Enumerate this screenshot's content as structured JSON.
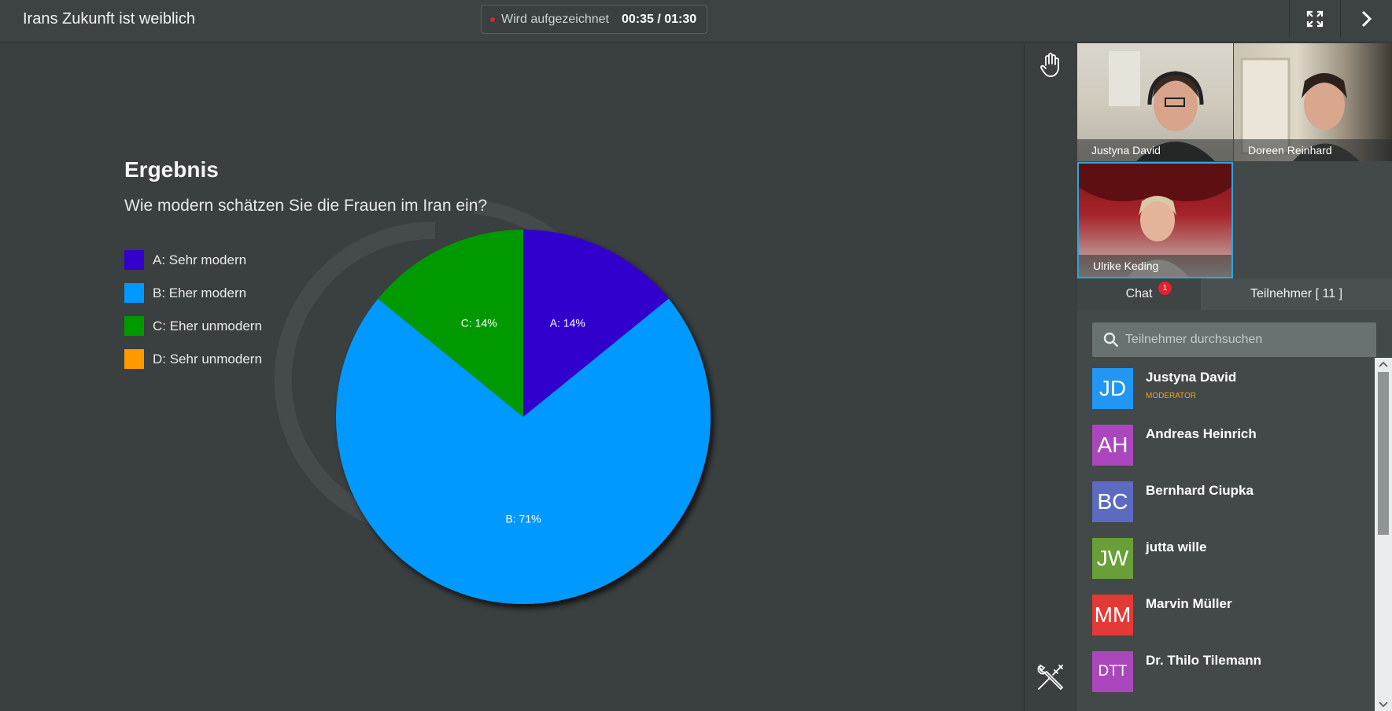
{
  "header": {
    "title": "Irans Zukunft ist weiblich",
    "recording_label": "Wird aufgezeichnet",
    "recording_time": "00:35 / 01:30"
  },
  "poll": {
    "heading": "Ergebnis",
    "question": "Wie modern schätzen Sie die Frauen im Iran ein?"
  },
  "chart_data": {
    "type": "pie",
    "categories": [
      "A: Sehr modern",
      "B: Eher modern",
      "C: Eher unmodern",
      "D: Sehr unmodern"
    ],
    "values": [
      14,
      71,
      14,
      0
    ],
    "slice_labels": [
      "A: 14%",
      "B: 71%",
      "C: 14%",
      ""
    ],
    "colors": [
      "#3300cc",
      "#0099ff",
      "#009900",
      "#ff9900"
    ],
    "legend": "left"
  },
  "videos": [
    {
      "name": "Justyna David"
    },
    {
      "name": "Doreen Reinhard"
    },
    {
      "name": "Ulrike Keding"
    }
  ],
  "tabs": {
    "chat": "Chat",
    "chat_badge": "1",
    "participants": "Teilnehmer [ 11 ]"
  },
  "search": {
    "placeholder": "Teilnehmer durchsuchen"
  },
  "participants": [
    {
      "initials": "JD",
      "name": "Justyna David",
      "role": "MODERATOR",
      "color": "#2196f3"
    },
    {
      "initials": "AH",
      "name": "Andreas Heinrich",
      "role": "",
      "color": "#ab47bc"
    },
    {
      "initials": "BC",
      "name": "Bernhard Ciupka",
      "role": "",
      "color": "#5c6bc0"
    },
    {
      "initials": "JW",
      "name": "jutta wille",
      "role": "",
      "color": "#689f38"
    },
    {
      "initials": "MM",
      "name": "Marvin Müller",
      "role": "",
      "color": "#e53935"
    },
    {
      "initials": "DTT",
      "name": "Dr. Thilo Tilemann",
      "role": "",
      "color": "#ab47bc"
    }
  ]
}
